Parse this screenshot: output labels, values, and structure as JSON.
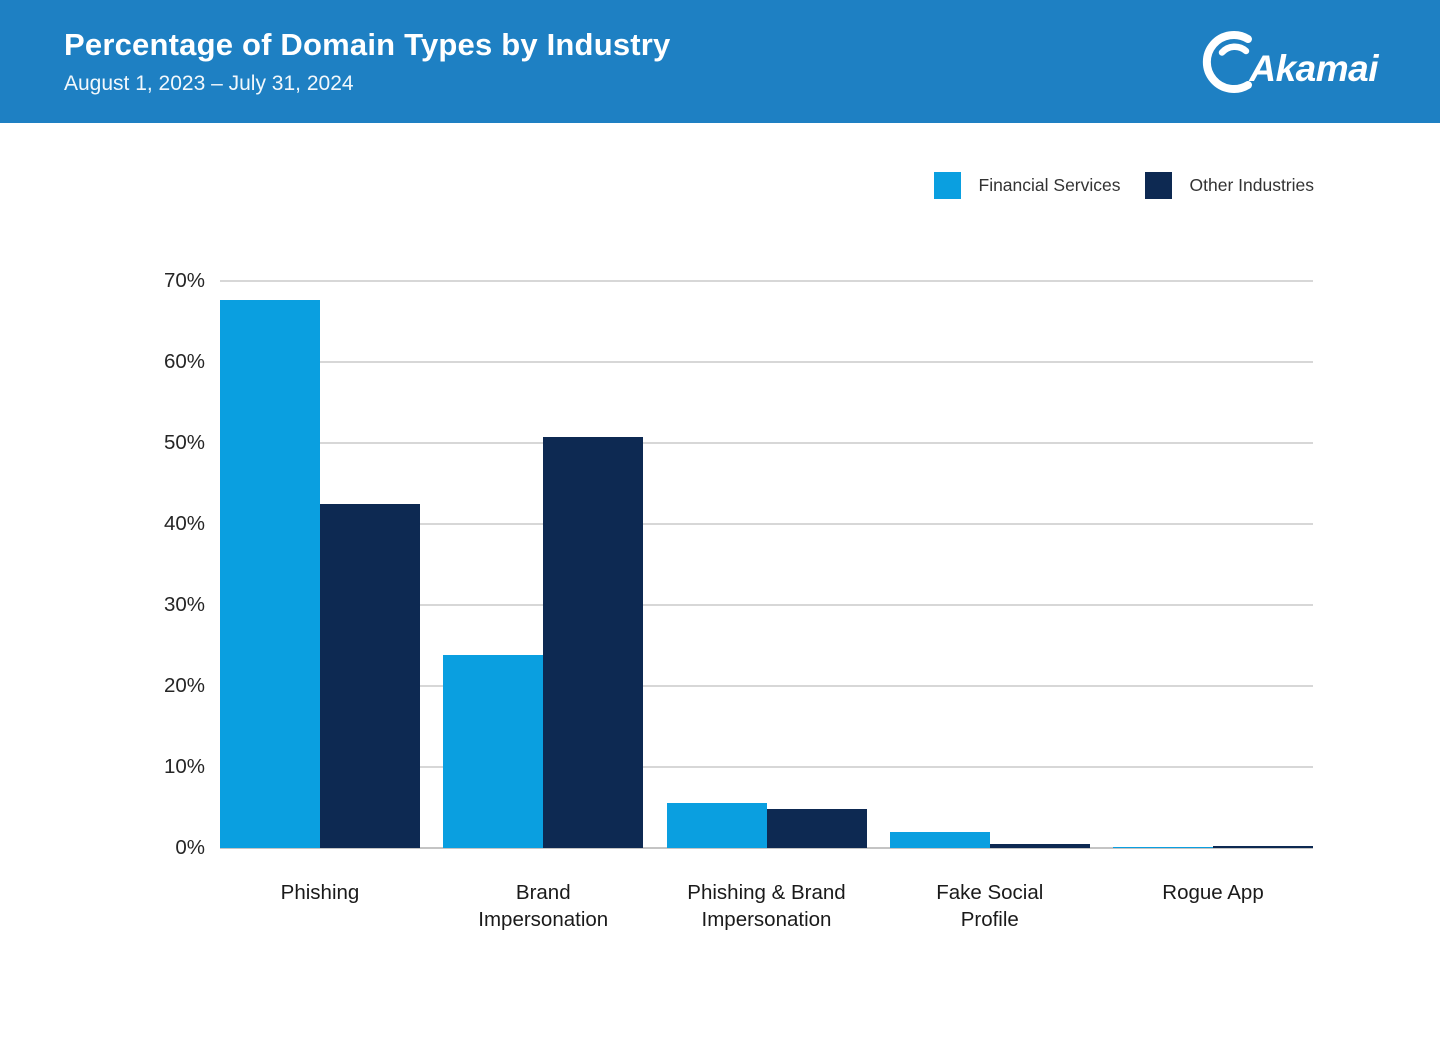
{
  "header": {
    "title": "Percentage of Domain Types by Industry",
    "subtitle": "August 1, 2023 – July 31, 2024",
    "logo_text": "Akamai"
  },
  "colors": {
    "header_bg": "#1E80C3",
    "financial_services": "#0A9FE0",
    "other_industries": "#0D2952",
    "gridline": "#D7D7D7",
    "axis": "#C4C4C4"
  },
  "legend": {
    "items": [
      {
        "label": "Financial Services",
        "color": "#0A9FE0"
      },
      {
        "label": "Other Industries",
        "color": "#0D2952"
      }
    ]
  },
  "chart_data": {
    "type": "bar",
    "title": "Percentage of Domain Types by Industry",
    "subtitle": "August 1, 2023 – July 31, 2024",
    "categories": [
      "Phishing",
      "Brand Impersonation",
      "Phishing & Brand Impersonation",
      "Fake Social Profile",
      "Rogue App"
    ],
    "category_lines": [
      [
        "Phishing"
      ],
      [
        "Brand",
        "Impersonation"
      ],
      [
        "Phishing & Brand",
        "Impersonation"
      ],
      [
        "Fake Social",
        "Profile"
      ],
      [
        "Rogue App"
      ]
    ],
    "series": [
      {
        "name": "Financial Services",
        "color": "#0A9FE0",
        "values": [
          67.7,
          23.8,
          5.6,
          2.0,
          0.1
        ]
      },
      {
        "name": "Other Industries",
        "color": "#0D2952",
        "values": [
          42.5,
          50.8,
          4.8,
          0.5,
          0.3
        ]
      }
    ],
    "xlabel": "",
    "ylabel": "",
    "ylim": [
      0,
      70
    ],
    "ytick_step": 10,
    "ytick_labels": [
      "0%",
      "10%",
      "20%",
      "30%",
      "40%",
      "50%",
      "60%",
      "70%"
    ],
    "grid": true,
    "legend_position": "top-right"
  }
}
